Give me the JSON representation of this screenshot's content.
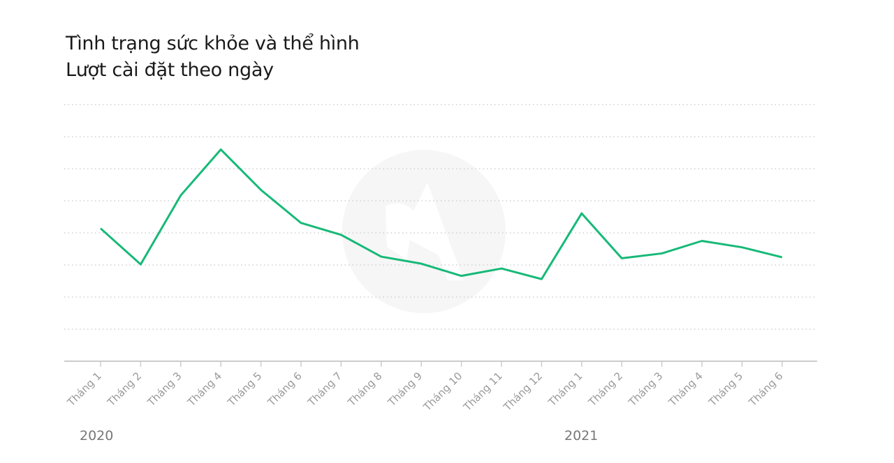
{
  "chart_data": {
    "type": "line",
    "title": "Tình trạng sức khỏe và thể hình",
    "subtitle": "Lượt cài đặt theo ngày",
    "categories": [
      "Tháng 1",
      "Tháng 2",
      "Tháng 3",
      "Tháng 4",
      "Tháng 5",
      "Tháng 6",
      "Tháng 7",
      "Tháng 8",
      "Tháng 9",
      "Tháng 10",
      "Tháng 11",
      "Tháng 12",
      "Tháng 1",
      "Tháng 2",
      "Tháng 3",
      "Tháng 4",
      "Tháng 5",
      "Tháng 6"
    ],
    "year_labels": [
      "2020",
      "2021"
    ],
    "series": [
      {
        "values": [
          41.4,
          30.2,
          51.7,
          66.0,
          53.4,
          43.1,
          39.4,
          32.6,
          30.4,
          26.6,
          28.9,
          25.6,
          46.1,
          32.1,
          33.6,
          37.5,
          35.5,
          32.4
        ]
      }
    ],
    "ylim": [
      0,
      80
    ],
    "grid": true,
    "line_color": "#17b978",
    "grid_color": "#d0d0d0",
    "axis_color": "#cccccc"
  }
}
